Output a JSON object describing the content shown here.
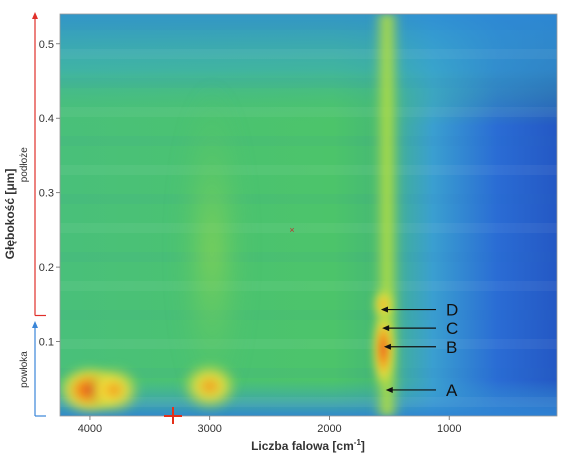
{
  "chart_data": {
    "type": "heatmap",
    "xlabel": "Liczba falowa [cm",
    "xlabel_sup": "-1",
    "xlabel_end": "]",
    "ylabel": "Głębokość [μm]",
    "x_axis_reversed": true,
    "xlim": [
      4250,
      100
    ],
    "ylim": [
      0,
      0.54
    ],
    "x_ticks": [
      4000,
      3000,
      2000,
      1000
    ],
    "x_tick_labels": [
      "4000",
      "3000",
      "2000",
      "1000"
    ],
    "y_ticks": [
      0.1,
      0.2,
      0.3,
      0.4,
      0.5
    ],
    "y_tick_labels": [
      "0.1",
      "0.2",
      "0.3",
      "0.4",
      "0.5"
    ],
    "colormap": [
      "#1d3fa8",
      "#2b7be0",
      "#3ab3c6",
      "#4cc46a",
      "#8fd24a",
      "#f2e23a",
      "#f59a1c",
      "#e4381a"
    ],
    "regions": [
      {
        "label": "podłoże",
        "y_from": 0.135,
        "y_to": 0.54,
        "color": "#e0302a"
      },
      {
        "label": "powłoka",
        "y_from": 0.0,
        "y_to": 0.125,
        "color": "#3a86d8"
      }
    ],
    "band_annotations": [
      {
        "label": "D",
        "x": 1570,
        "y": 0.143
      },
      {
        "label": "C",
        "x": 1560,
        "y": 0.118
      },
      {
        "label": "B",
        "x": 1545,
        "y": 0.093
      },
      {
        "label": "A",
        "x": 1530,
        "y": 0.035
      }
    ],
    "hotspots": [
      {
        "x": 4000,
        "y": 0.035,
        "intensity": 0.95
      },
      {
        "x": 3800,
        "y": 0.035,
        "intensity": 0.8
      },
      {
        "x": 3000,
        "y": 0.04,
        "intensity": 0.85
      },
      {
        "x": 1550,
        "y": 0.09,
        "intensity": 1.0
      },
      {
        "x": 1550,
        "y": 0.15,
        "intensity": 0.85
      }
    ]
  }
}
